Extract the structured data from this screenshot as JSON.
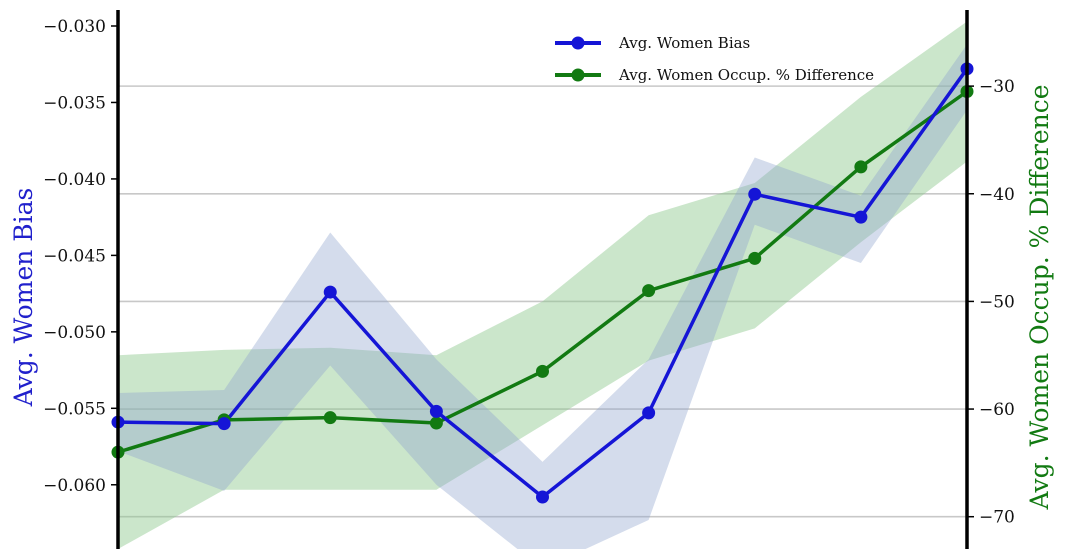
{
  "chart_data": {
    "type": "line",
    "title": "",
    "xlabel": "",
    "ylabel_left": "Avg. Women Bias",
    "ylabel_right": "Avg. Women Occup. % Difference",
    "x": [
      0,
      1,
      2,
      3,
      4,
      5,
      6,
      7,
      8
    ],
    "ylim_left": [
      -0.0642,
      -0.0283
    ],
    "ylim_right": [
      -73,
      -22
    ],
    "yticks_left": [
      "−0.030",
      "−0.035",
      "−0.040",
      "−0.045",
      "−0.050",
      "−0.055",
      "−0.060"
    ],
    "yticks_left_values": [
      -0.03,
      -0.035,
      -0.04,
      -0.045,
      -0.05,
      -0.055,
      -0.06
    ],
    "yticks_right": [
      "−30",
      "−40",
      "−50",
      "−60",
      "−70"
    ],
    "yticks_right_values": [
      -30,
      -40,
      -50,
      -60,
      -70
    ],
    "grid": "horizontal (right axis)",
    "legend_position": "top-right",
    "series": [
      {
        "name": "Avg. Women Bias",
        "axis": "left",
        "color": "#1515d6",
        "band_color": "#8fa3cc",
        "values": [
          -0.0559,
          -0.056,
          -0.0474,
          -0.0552,
          -0.0608,
          -0.0553,
          -0.041,
          -0.0425,
          -0.0328
        ],
        "lower": [
          -0.0578,
          -0.0604,
          -0.0522,
          -0.06,
          -0.0655,
          -0.0623,
          -0.043,
          -0.0455,
          -0.0355
        ],
        "upper": [
          -0.054,
          -0.0538,
          -0.0435,
          -0.0518,
          -0.0585,
          -0.0518,
          -0.0386,
          -0.0411,
          -0.0312
        ]
      },
      {
        "name": "Avg. Women Occup. % Difference",
        "axis": "right",
        "color": "#127a12",
        "band_color": "#8cc88c",
        "values": [
          -64.0,
          -61.0,
          -60.8,
          -61.3,
          -56.5,
          -49.0,
          -46.0,
          -37.5,
          -30.5
        ],
        "lower": [
          -73.0,
          -67.5,
          -67.5,
          -67.5,
          -61.5,
          -55.5,
          -52.5,
          -44.5,
          -37.0
        ],
        "upper": [
          -55.0,
          -54.5,
          -54.3,
          -55.0,
          -50.0,
          -42.0,
          -39.0,
          -31.0,
          -24.0
        ]
      }
    ]
  }
}
